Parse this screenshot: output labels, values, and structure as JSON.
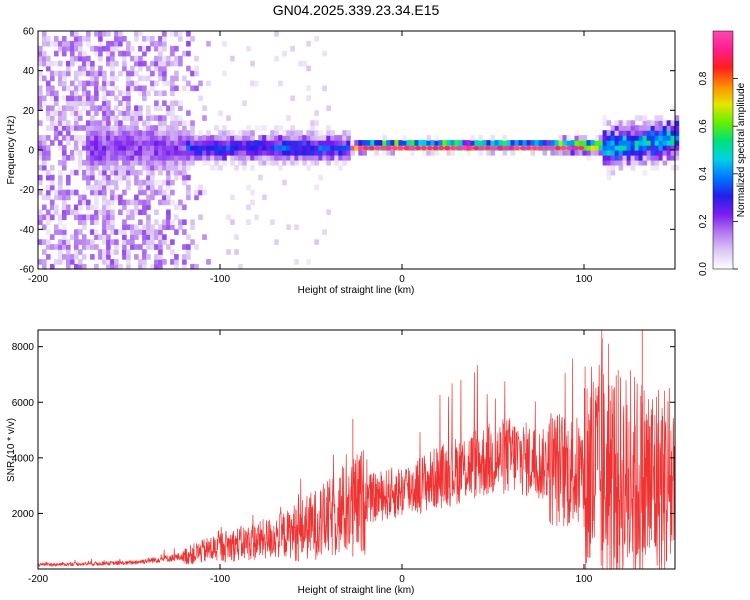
{
  "title": "GN04.2025.339.23.34.E15",
  "chart_data": [
    {
      "type": "heatmap",
      "name": "spectrogram",
      "xlabel": "Height of straight line (km)",
      "ylabel": "Frequency (Hz)",
      "xlim": [
        -200,
        150
      ],
      "ylim": [
        -60,
        60
      ],
      "xticks": [
        -200,
        -100,
        0,
        100
      ],
      "yticks": [
        -60,
        -40,
        -20,
        0,
        20,
        40,
        60
      ],
      "colorbar": {
        "label": "Normalized spectral amplitude",
        "range": [
          0,
          1
        ],
        "ticks": [
          0.0,
          0.2,
          0.4,
          0.6,
          0.8
        ],
        "colors": [
          "#ffffff",
          "#dcc8f5",
          "#b478f0",
          "#7a1df0",
          "#2020e6",
          "#0078ff",
          "#00d2e6",
          "#00e178",
          "#64f000",
          "#e6e600",
          "#ff8c00",
          "#ff1e1e",
          "#ff1e8c",
          "#ff46b4"
        ]
      },
      "ridge": {
        "description": "signal concentrated near 0 Hz",
        "segments": [
          {
            "x_start": -175,
            "x_end": -120,
            "amplitude": 0.22,
            "half_width_hz": 12
          },
          {
            "x_start": -120,
            "x_end": -30,
            "amplitude": 0.35,
            "half_width_hz": 6
          },
          {
            "x_start": -30,
            "x_end": 80,
            "amplitude": 0.95,
            "half_width_hz": 2
          },
          {
            "x_start": 80,
            "x_end": 110,
            "amplitude": 0.7,
            "half_width_hz": 3
          },
          {
            "x_start": 110,
            "x_end": 150,
            "amplitude": 0.5,
            "half_width_hz": 8
          }
        ],
        "noise_region": {
          "x_start": -200,
          "x_end": -105,
          "amplitude": 0.15
        }
      }
    },
    {
      "type": "line",
      "name": "snr",
      "xlabel": "Height of straight line (km)",
      "ylabel": "SNR (10 * v/v)",
      "xlim": [
        -200,
        150
      ],
      "ylim": [
        0,
        8600
      ],
      "xticks": [
        -200,
        -100,
        0,
        100
      ],
      "yticks": [
        2000,
        4000,
        6000,
        8000
      ],
      "color": "#f03232",
      "envelope_points": [
        {
          "x": -200,
          "y": 150
        },
        {
          "x": -150,
          "y": 220
        },
        {
          "x": -120,
          "y": 450
        },
        {
          "x": -100,
          "y": 800
        },
        {
          "x": -80,
          "y": 1000
        },
        {
          "x": -60,
          "y": 1300
        },
        {
          "x": -40,
          "y": 1800
        },
        {
          "x": -20,
          "y": 2500
        },
        {
          "x": 0,
          "y": 2800
        },
        {
          "x": 20,
          "y": 3300
        },
        {
          "x": 40,
          "y": 3800
        },
        {
          "x": 60,
          "y": 4100
        },
        {
          "x": 80,
          "y": 3700
        },
        {
          "x": 100,
          "y": 3400
        },
        {
          "x": 120,
          "y": 3200
        },
        {
          "x": 150,
          "y": 3000
        }
      ],
      "peak_values": [
        {
          "x": -57,
          "y": 2400
        },
        {
          "x": -27,
          "y": 5400
        },
        {
          "x": 110,
          "y": 8300
        },
        {
          "x": 132,
          "y": 8600
        },
        {
          "x": 150,
          "y": 8500
        }
      ]
    }
  ]
}
